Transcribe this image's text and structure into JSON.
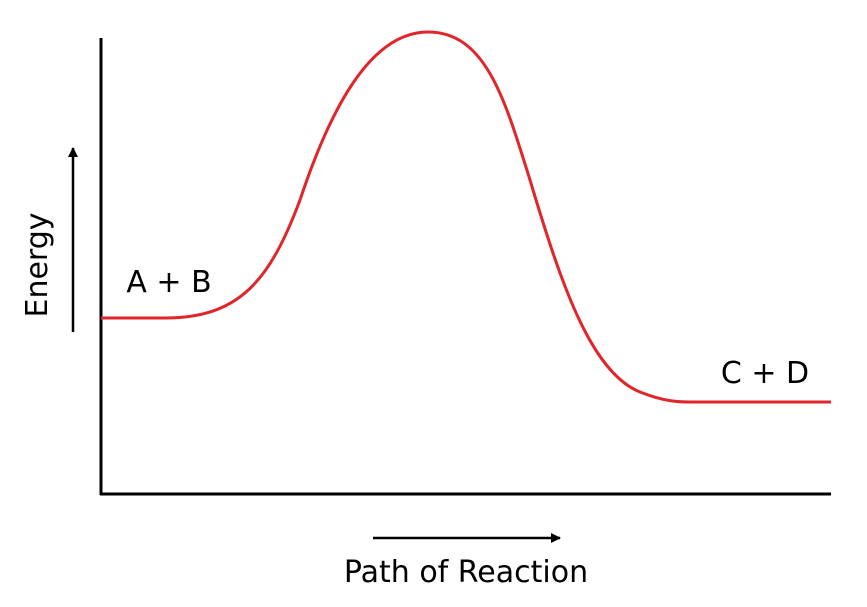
{
  "diagram": {
    "type": "energy-profile",
    "axes": {
      "y_label": "Energy",
      "x_label": "Path of Reaction"
    },
    "reactants_label": "A + B",
    "products_label": "C + D",
    "colors": {
      "curve": "#e0252b",
      "axes": "#000000",
      "text": "#000000"
    }
  }
}
